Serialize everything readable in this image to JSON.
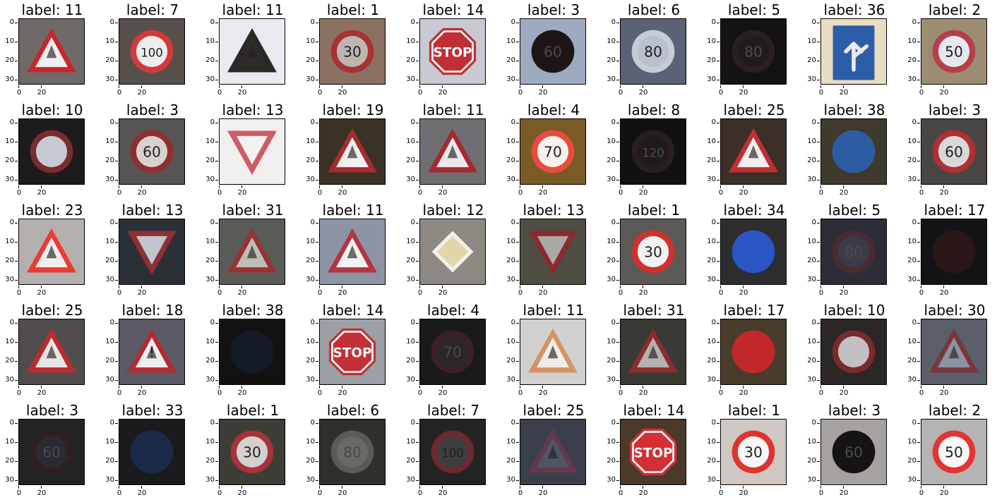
{
  "axes": {
    "yticks": [
      "0",
      "10",
      "20",
      "30"
    ],
    "xticks": [
      "0",
      "20"
    ]
  },
  "tiles": [
    {
      "title": "label: 11",
      "bg": "#6f6a67",
      "sign": "tri",
      "fg": "#c7262b",
      "inner": "#f0f0f0",
      "text": "",
      "dark": false
    },
    {
      "title": "label: 7",
      "bg": "#574f4b",
      "sign": "circle",
      "fg": "#d33b3b",
      "inner": "#ededed",
      "text": "100",
      "dark": false
    },
    {
      "title": "label: 11",
      "bg": "#e9e9ef",
      "sign": "tri",
      "fg": "#2a2727",
      "inner": "#2e2a2a",
      "text": "",
      "dark": true
    },
    {
      "title": "label: 1",
      "bg": "#8b7161",
      "sign": "circle",
      "fg": "#a83234",
      "inner": "#bdb5b1",
      "text": "30",
      "dark": false
    },
    {
      "title": "label: 14",
      "bg": "#c8cad3",
      "sign": "oct",
      "fg": "#c22e35",
      "inner": "#c22e35",
      "text": "STOP",
      "dark": false
    },
    {
      "title": "label: 3",
      "bg": "#9eaac0",
      "sign": "circle",
      "fg": "#1e1517",
      "inner": "#1e1517",
      "text": "60",
      "dark": true
    },
    {
      "title": "label: 6",
      "bg": "#5c6275",
      "sign": "circle",
      "fg": "#c6ccd7",
      "inner": "#b9bfcb",
      "text": "80",
      "dark": false
    },
    {
      "title": "label: 5",
      "bg": "#141213",
      "sign": "circle",
      "fg": "#2a1f21",
      "inner": "#211b1c",
      "text": "80",
      "dark": true
    },
    {
      "title": "label: 36",
      "bg": "#eadcc2",
      "sign": "square",
      "fg": "#2b5ea7",
      "inner": "#2b5ea7",
      "text": "",
      "dark": false
    },
    {
      "title": "label: 2",
      "bg": "#9c8d72",
      "sign": "circle",
      "fg": "#b63e4b",
      "inner": "#e7e7ef",
      "text": "50",
      "dark": false
    },
    {
      "title": "label: 10",
      "bg": "#1d1b1b",
      "sign": "circle",
      "fg": "#7b2b2f",
      "inner": "#c6cad5",
      "text": "",
      "dark": false
    },
    {
      "title": "label: 3",
      "bg": "#575552",
      "sign": "circle",
      "fg": "#8d2f33",
      "inner": "#d7d2cf",
      "text": "60",
      "dark": false
    },
    {
      "title": "label: 13",
      "bg": "#f2efef",
      "sign": "tri-down",
      "fg": "#d25a67",
      "inner": "#f4f1f1",
      "text": "",
      "dark": false
    },
    {
      "title": "label: 19",
      "bg": "#3b3226",
      "sign": "tri",
      "fg": "#a62b2e",
      "inner": "#f2efef",
      "text": "",
      "dark": false
    },
    {
      "title": "label: 11",
      "bg": "#6e6e73",
      "sign": "tri",
      "fg": "#a42a2d",
      "inner": "#ebe8ea",
      "text": "",
      "dark": false
    },
    {
      "title": "label: 4",
      "bg": "#7a5b26",
      "sign": "circle",
      "fg": "#ea4b3f",
      "inner": "#f4f1ee",
      "text": "70",
      "dark": false
    },
    {
      "title": "label: 8",
      "bg": "#121112",
      "sign": "circle",
      "fg": "#2a1e21",
      "inner": "#1f1b1d",
      "text": "120",
      "dark": true
    },
    {
      "title": "label: 25",
      "bg": "#3b2f28",
      "sign": "tri",
      "fg": "#c02f32",
      "inner": "#f3efee",
      "text": "",
      "dark": false
    },
    {
      "title": "label: 38",
      "bg": "#3e3a2d",
      "sign": "circle",
      "fg": "#2c5da3",
      "inner": "#2c5da3",
      "text": "",
      "dark": false
    },
    {
      "title": "label: 3",
      "bg": "#4a4643",
      "sign": "circle",
      "fg": "#b12f33",
      "inner": "#d9d8d9",
      "text": "60",
      "dark": false
    },
    {
      "title": "label: 23",
      "bg": "#b4b0ad",
      "sign": "tri",
      "fg": "#ea3a33",
      "inner": "#f0eded",
      "text": "",
      "dark": false
    },
    {
      "title": "label: 13",
      "bg": "#2b3036",
      "sign": "tri-down",
      "fg": "#8d2f33",
      "inner": "#bfc4cd",
      "text": "",
      "dark": false
    },
    {
      "title": "label: 31",
      "bg": "#595b55",
      "sign": "tri",
      "fg": "#983235",
      "inner": "#bdbdb8",
      "text": "",
      "dark": false
    },
    {
      "title": "label: 11",
      "bg": "#8e94a6",
      "sign": "tri",
      "fg": "#b2363f",
      "inner": "#f1f1f4",
      "text": "",
      "dark": false
    },
    {
      "title": "label: 12",
      "bg": "#8d8983",
      "sign": "diamond",
      "fg": "#e2d6a8",
      "inner": "#d7d1b6",
      "text": "",
      "dark": false
    },
    {
      "title": "label: 13",
      "bg": "#4f4e45",
      "sign": "tri-down",
      "fg": "#8a2b2d",
      "inner": "#a9a9a5",
      "text": "",
      "dark": false
    },
    {
      "title": "label: 1",
      "bg": "#5b5a57",
      "sign": "circle",
      "fg": "#d1302d",
      "inner": "#f2f2f2",
      "text": "30",
      "dark": false
    },
    {
      "title": "label: 34",
      "bg": "#2d2c2e",
      "sign": "circle",
      "fg": "#2b54c4",
      "inner": "#2b54c4",
      "text": "",
      "dark": false
    },
    {
      "title": "label: 5",
      "bg": "#2c2d37",
      "sign": "circle",
      "fg": "#4a2b33",
      "inner": "#3c3b48",
      "text": "80",
      "dark": true
    },
    {
      "title": "label: 17",
      "bg": "#141315",
      "sign": "circle",
      "fg": "#2b1718",
      "inner": "#2b1718",
      "text": "",
      "dark": true
    },
    {
      "title": "label: 25",
      "bg": "#514d4c",
      "sign": "tri",
      "fg": "#bc2b2e",
      "inner": "#e8e6e5",
      "text": "",
      "dark": false
    },
    {
      "title": "label: 18",
      "bg": "#5a5b66",
      "sign": "tri",
      "fg": "#b22b31",
      "inner": "#eeeeef",
      "text": "!",
      "dark": false
    },
    {
      "title": "label: 38",
      "bg": "#121213",
      "sign": "circle",
      "fg": "#151a27",
      "inner": "#151a27",
      "text": "",
      "dark": true
    },
    {
      "title": "label: 14",
      "bg": "#9aa0a6",
      "sign": "oct",
      "fg": "#c23137",
      "inner": "#c23137",
      "text": "STOP",
      "dark": false
    },
    {
      "title": "label: 4",
      "bg": "#1a1a1b",
      "sign": "circle",
      "fg": "#3a2124",
      "inner": "#2a2629",
      "text": "70",
      "dark": true
    },
    {
      "title": "label: 11",
      "bg": "#d1d0cf",
      "sign": "tri",
      "fg": "#d69266",
      "inner": "#f1eeea",
      "text": "",
      "dark": false
    },
    {
      "title": "label: 31",
      "bg": "#3a3a34",
      "sign": "tri",
      "fg": "#8b2d30",
      "inner": "#b3b2ae",
      "text": "",
      "dark": false
    },
    {
      "title": "label: 17",
      "bg": "#4a3c2a",
      "sign": "circle",
      "fg": "#c2282a",
      "inner": "#c2282a",
      "text": "",
      "dark": false
    },
    {
      "title": "label: 10",
      "bg": "#2a2726",
      "sign": "circle",
      "fg": "#7a2a2d",
      "inner": "#c2c0c2",
      "text": "",
      "dark": false
    },
    {
      "title": "label: 30",
      "bg": "#5b5f69",
      "sign": "tri",
      "fg": "#7b353c",
      "inner": "#8d92a1",
      "text": "",
      "dark": false
    },
    {
      "title": "label: 3",
      "bg": "#232224",
      "sign": "circle",
      "fg": "#2f1f23",
      "inner": "#2a2a33",
      "text": "60",
      "dark": true
    },
    {
      "title": "label: 33",
      "bg": "#1a1b1d",
      "sign": "circle",
      "fg": "#1a2a48",
      "inner": "#1a2a48",
      "text": "",
      "dark": true
    },
    {
      "title": "label: 1",
      "bg": "#3c3d34",
      "sign": "circle",
      "fg": "#a6333a",
      "inner": "#d2d1ce",
      "text": "30",
      "dark": false
    },
    {
      "title": "label: 6",
      "bg": "#2f2f2b",
      "sign": "circle",
      "fg": "#5a5a57",
      "inner": "#6a6a65",
      "text": "80",
      "dark": true
    },
    {
      "title": "label: 7",
      "bg": "#232323",
      "sign": "circle",
      "fg": "#6a2a2f",
      "inner": "#3d3f3f",
      "text": "100",
      "dark": false
    },
    {
      "title": "label: 25",
      "bg": "#3b3f4b",
      "sign": "tri",
      "fg": "#64384b",
      "inner": "#4f5566",
      "text": "",
      "dark": true
    },
    {
      "title": "label: 14",
      "bg": "#4b3a2a",
      "sign": "oct",
      "fg": "#d32f34",
      "inner": "#d32f34",
      "text": "STOP",
      "dark": false
    },
    {
      "title": "label: 1",
      "bg": "#cfc7c2",
      "sign": "circle",
      "fg": "#e0322f",
      "inner": "#f6f6f6",
      "text": "30",
      "dark": false
    },
    {
      "title": "label: 3",
      "bg": "#a6a29f",
      "sign": "circle",
      "fg": "#151314",
      "inner": "#151314",
      "text": "60",
      "dark": true
    },
    {
      "title": "label: 2",
      "bg": "#b6b3b3",
      "sign": "circle",
      "fg": "#e23433",
      "inner": "#f7f7f7",
      "text": "50",
      "dark": false
    }
  ]
}
